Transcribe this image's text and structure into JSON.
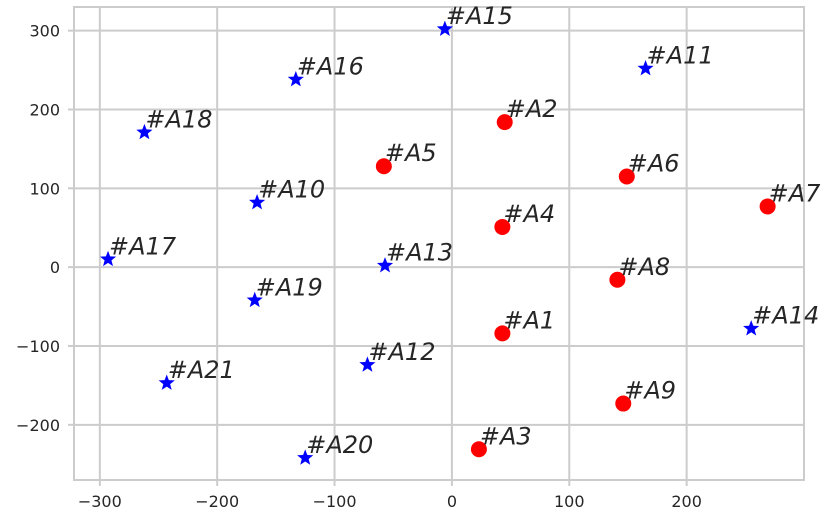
{
  "chart_data": {
    "type": "scatter",
    "xlim": [
      -322,
      300
    ],
    "ylim": [
      -270,
      330
    ],
    "x_ticks": [
      -300,
      -200,
      -100,
      0,
      100,
      200
    ],
    "y_ticks": [
      -200,
      -100,
      0,
      100,
      200,
      300
    ],
    "x_tick_labels": [
      "−300",
      "−200",
      "−100",
      "0",
      "100",
      "200"
    ],
    "y_tick_labels": [
      "−200",
      "−100",
      "0",
      "100",
      "200",
      "300"
    ],
    "grid": true,
    "colors": {
      "circle": "#ff0000",
      "star": "#0000ff",
      "grid": "#cccccc",
      "text": "#262626"
    },
    "series": [
      {
        "marker": "circle",
        "points": [
          {
            "label": "#A1",
            "x": 43,
            "y": -84
          },
          {
            "label": "#A2",
            "x": 45,
            "y": 184
          },
          {
            "label": "#A3",
            "x": 23,
            "y": -231
          },
          {
            "label": "#A4",
            "x": 43,
            "y": 51
          },
          {
            "label": "#A5",
            "x": -58,
            "y": 128
          },
          {
            "label": "#A6",
            "x": 149,
            "y": 115
          },
          {
            "label": "#A7",
            "x": 269,
            "y": 77
          },
          {
            "label": "#A8",
            "x": 141,
            "y": -16
          },
          {
            "label": "#A9",
            "x": 146,
            "y": -173
          }
        ]
      },
      {
        "marker": "star",
        "points": [
          {
            "label": "#A10",
            "x": -166,
            "y": 82
          },
          {
            "label": "#A11",
            "x": 165,
            "y": 252
          },
          {
            "label": "#A12",
            "x": -72,
            "y": -124
          },
          {
            "label": "#A13",
            "x": -57,
            "y": 2
          },
          {
            "label": "#A14",
            "x": 255,
            "y": -78
          },
          {
            "label": "#A15",
            "x": -6,
            "y": 302
          },
          {
            "label": "#A16",
            "x": -133,
            "y": 238
          },
          {
            "label": "#A17",
            "x": -293,
            "y": 10
          },
          {
            "label": "#A18",
            "x": -262,
            "y": 171
          },
          {
            "label": "#A19",
            "x": -168,
            "y": -42
          },
          {
            "label": "#A20",
            "x": -125,
            "y": -242
          },
          {
            "label": "#A21",
            "x": -243,
            "y": -147
          }
        ]
      }
    ]
  }
}
